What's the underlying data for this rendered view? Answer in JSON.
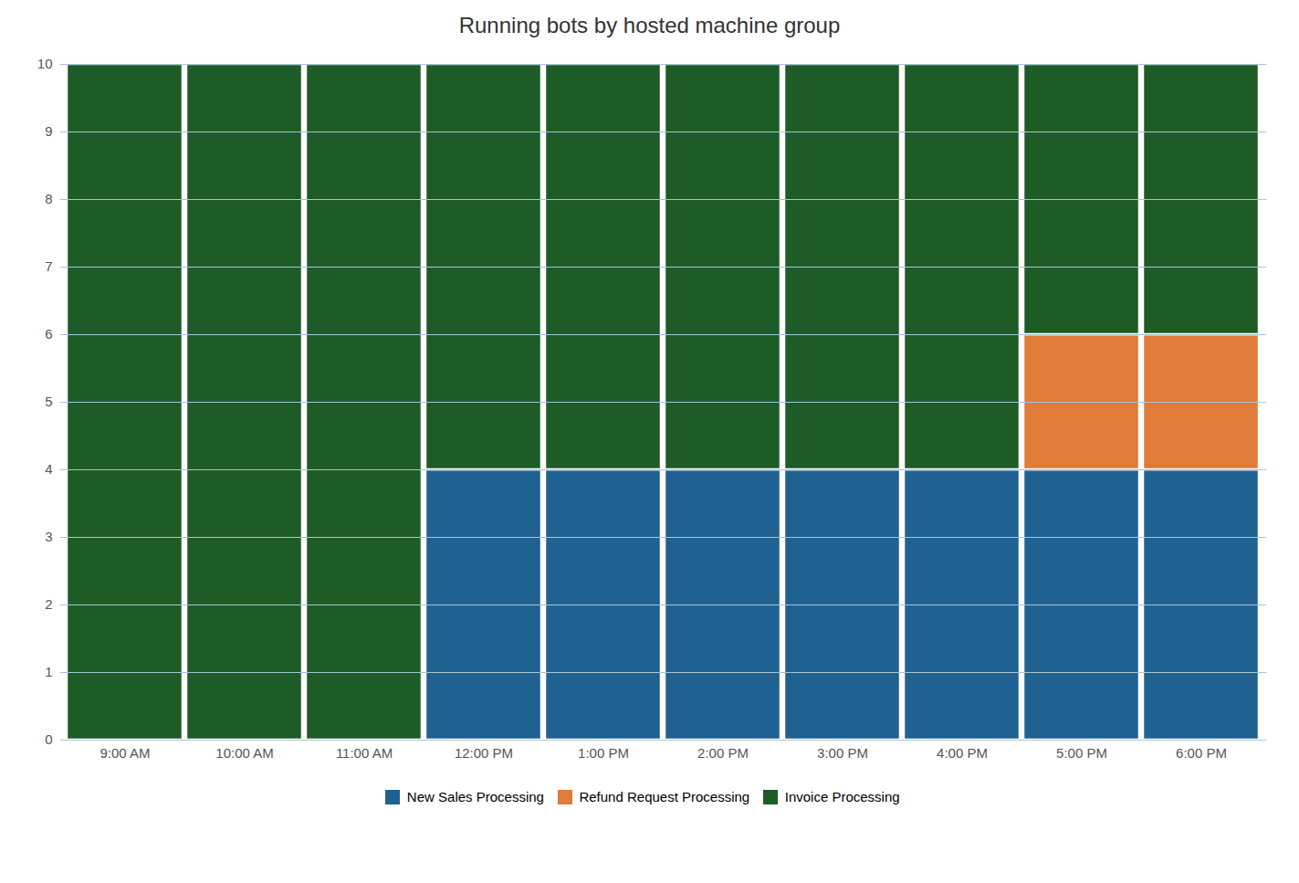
{
  "chart_data": {
    "type": "bar",
    "title": "Running bots by hosted machine group",
    "categories": [
      "9:00 AM",
      "10:00 AM",
      "11:00 AM",
      "12:00 PM",
      "1:00 PM",
      "2:00 PM",
      "3:00 PM",
      "4:00 PM",
      "5:00 PM",
      "6:00 PM"
    ],
    "series": [
      {
        "name": "New Sales Processing",
        "color": "#1f6291",
        "values": [
          0,
          0,
          0,
          4,
          4,
          4,
          4,
          4,
          4,
          4
        ]
      },
      {
        "name": "Refund Request Processing",
        "color": "#e07b39",
        "values": [
          0,
          0,
          0,
          0,
          0,
          0,
          0,
          0,
          2,
          2
        ]
      },
      {
        "name": "Invoice Processing",
        "color": "#1e5c27",
        "values": [
          10,
          10,
          10,
          6,
          6,
          6,
          6,
          6,
          4,
          4
        ]
      }
    ],
    "ylim": [
      0,
      10
    ],
    "yticks": [
      0,
      1,
      2,
      3,
      4,
      5,
      6,
      7,
      8,
      9,
      10
    ],
    "stacked": true,
    "grid": true,
    "legend": "bottom"
  }
}
